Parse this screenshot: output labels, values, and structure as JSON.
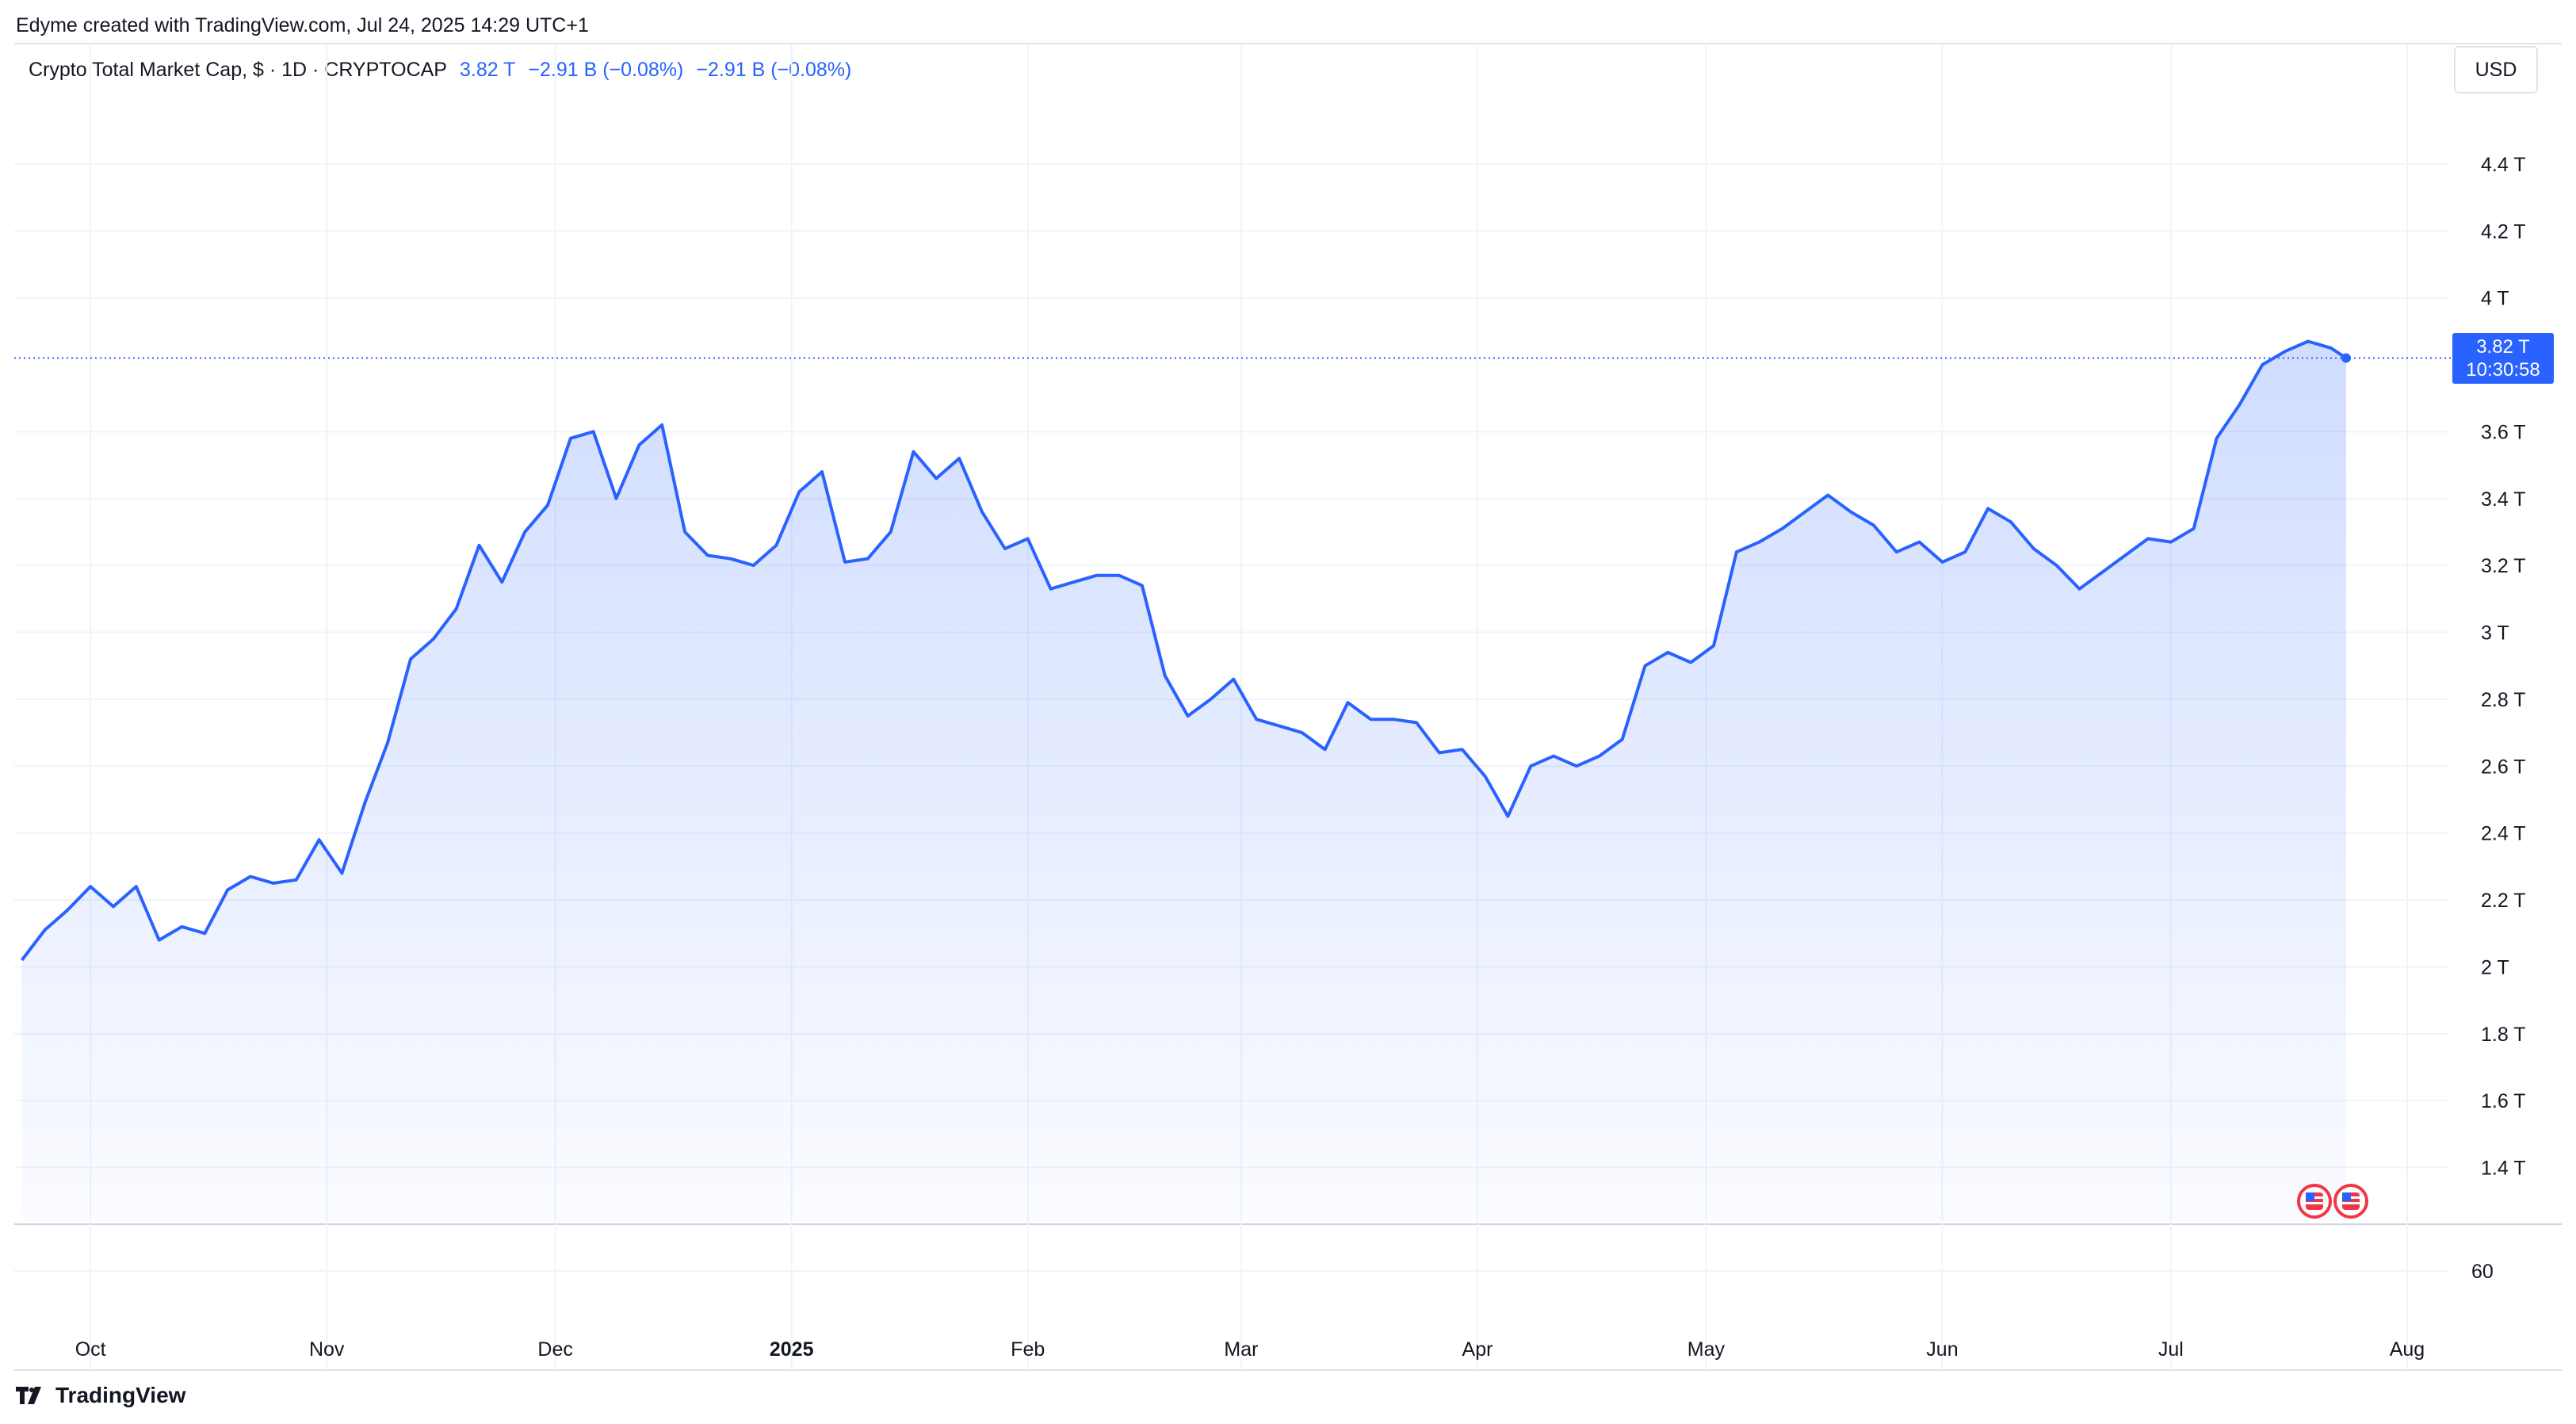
{
  "header": {
    "creator": "Edyme created with TradingView.com, Jul 24, 2025 14:29 UTC+1"
  },
  "legend": {
    "title": "Crypto Total Market Cap, $ · 1D · CRYPTOCAP",
    "last": "3.82 T",
    "change1": "−2.91 B (−0.08%)",
    "change2": "−2.91 B (−0.08%)"
  },
  "currency": "USD",
  "price_tag": {
    "value": "3.82 T",
    "countdown": "10:30:58"
  },
  "footer": {
    "brand": "TradingView"
  },
  "colors": {
    "line": "#2962ff",
    "fill": "#2962ff",
    "grid": "#f0f3fa",
    "axis_text": "#131722"
  },
  "chart_data": {
    "type": "area",
    "series": [
      {
        "name": "Crypto Total Market Cap",
        "unit": "T USD"
      }
    ],
    "x_tick_labels": [
      "Oct",
      "Nov",
      "Dec",
      "2025",
      "Feb",
      "Mar",
      "Apr",
      "May",
      "Jun",
      "Jul",
      "Aug"
    ],
    "y_ticks": [
      {
        "label": "1.4 T",
        "value": 1.4
      },
      {
        "label": "1.6 T",
        "value": 1.6
      },
      {
        "label": "1.8 T",
        "value": 1.8
      },
      {
        "label": "2 T",
        "value": 2.0
      },
      {
        "label": "2.2 T",
        "value": 2.2
      },
      {
        "label": "2.4 T",
        "value": 2.4
      },
      {
        "label": "2.6 T",
        "value": 2.6
      },
      {
        "label": "2.8 T",
        "value": 2.8
      },
      {
        "label": "3 T",
        "value": 3.0
      },
      {
        "label": "3.2 T",
        "value": 3.2
      },
      {
        "label": "3.4 T",
        "value": 3.4
      },
      {
        "label": "3.6 T",
        "value": 3.6
      },
      {
        "label": "4 T",
        "value": 4.0
      },
      {
        "label": "4.2 T",
        "value": 4.2
      },
      {
        "label": "4.4 T",
        "value": 4.4
      }
    ],
    "ylim": [
      1.24,
      4.76
    ],
    "lower_pane_tick": "60",
    "last_value": 3.82,
    "x": [
      "2024-09-22",
      "2024-09-25",
      "2024-09-28",
      "2024-10-01",
      "2024-10-04",
      "2024-10-07",
      "2024-10-10",
      "2024-10-13",
      "2024-10-16",
      "2024-10-19",
      "2024-10-22",
      "2024-10-25",
      "2024-10-28",
      "2024-10-31",
      "2024-11-03",
      "2024-11-06",
      "2024-11-09",
      "2024-11-12",
      "2024-11-15",
      "2024-11-18",
      "2024-11-21",
      "2024-11-24",
      "2024-11-27",
      "2024-11-30",
      "2024-12-03",
      "2024-12-06",
      "2024-12-09",
      "2024-12-12",
      "2024-12-15",
      "2024-12-18",
      "2024-12-21",
      "2024-12-24",
      "2024-12-27",
      "2024-12-30",
      "2025-01-02",
      "2025-01-05",
      "2025-01-08",
      "2025-01-11",
      "2025-01-14",
      "2025-01-17",
      "2025-01-20",
      "2025-01-23",
      "2025-01-26",
      "2025-01-29",
      "2025-02-01",
      "2025-02-04",
      "2025-02-07",
      "2025-02-10",
      "2025-02-13",
      "2025-02-16",
      "2025-02-19",
      "2025-02-22",
      "2025-02-25",
      "2025-02-28",
      "2025-03-03",
      "2025-03-06",
      "2025-03-09",
      "2025-03-12",
      "2025-03-15",
      "2025-03-18",
      "2025-03-21",
      "2025-03-24",
      "2025-03-27",
      "2025-03-30",
      "2025-04-02",
      "2025-04-05",
      "2025-04-08",
      "2025-04-11",
      "2025-04-14",
      "2025-04-17",
      "2025-04-20",
      "2025-04-23",
      "2025-04-26",
      "2025-04-29",
      "2025-05-02",
      "2025-05-05",
      "2025-05-08",
      "2025-05-11",
      "2025-05-14",
      "2025-05-17",
      "2025-05-20",
      "2025-05-23",
      "2025-05-26",
      "2025-05-29",
      "2025-06-01",
      "2025-06-04",
      "2025-06-07",
      "2025-06-10",
      "2025-06-13",
      "2025-06-16",
      "2025-06-19",
      "2025-06-22",
      "2025-06-25",
      "2025-06-28",
      "2025-07-01",
      "2025-07-04",
      "2025-07-07",
      "2025-07-10",
      "2025-07-13",
      "2025-07-16",
      "2025-07-19",
      "2025-07-22",
      "2025-07-24"
    ],
    "values": [
      2.02,
      2.11,
      2.17,
      2.24,
      2.18,
      2.24,
      2.08,
      2.12,
      2.1,
      2.23,
      2.27,
      2.25,
      2.26,
      2.38,
      2.28,
      2.49,
      2.67,
      2.92,
      2.98,
      3.07,
      3.26,
      3.15,
      3.3,
      3.38,
      3.58,
      3.6,
      3.4,
      3.56,
      3.62,
      3.3,
      3.23,
      3.22,
      3.2,
      3.26,
      3.42,
      3.48,
      3.21,
      3.22,
      3.3,
      3.54,
      3.46,
      3.52,
      3.36,
      3.25,
      3.28,
      3.13,
      3.15,
      3.17,
      3.17,
      3.14,
      2.87,
      2.75,
      2.8,
      2.86,
      2.74,
      2.72,
      2.7,
      2.65,
      2.79,
      2.74,
      2.74,
      2.73,
      2.64,
      2.65,
      2.57,
      2.45,
      2.6,
      2.63,
      2.6,
      2.63,
      2.68,
      2.9,
      2.94,
      2.91,
      2.96,
      3.24,
      3.27,
      3.31,
      3.36,
      3.41,
      3.36,
      3.32,
      3.24,
      3.27,
      3.21,
      3.24,
      3.37,
      3.33,
      3.25,
      3.2,
      3.13,
      3.18,
      3.23,
      3.28,
      3.27,
      3.31,
      3.58,
      3.68,
      3.8,
      3.84,
      3.87,
      3.85,
      3.82
    ]
  }
}
